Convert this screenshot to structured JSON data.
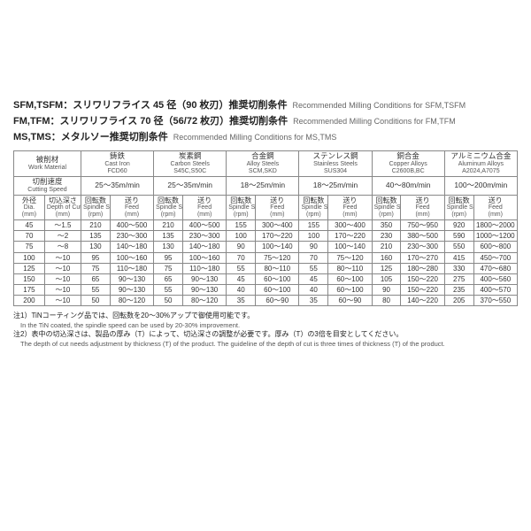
{
  "titles": [
    {
      "jp": "SFM,TSFM：スリワリフライス 45 径（90 枚刃）推奨切削条件",
      "en": "Recommended Milling Conditions for SFM,TSFM"
    },
    {
      "jp": "FM,TFM：スリワリフライス 70 径（56/72 枚刃）推奨切削条件",
      "en": "Recommended Milling Conditions for FM,TFM"
    },
    {
      "jp": "MS,TMS：メタルソー推奨切削条件",
      "en": "Recommended Milling Conditions for MS,TMS"
    }
  ],
  "header": {
    "work_jp": "被削材",
    "work_en": "Work Material",
    "cut_jp": "切削速度",
    "cut_en": "Cutting Speed",
    "dia_jp": "外径",
    "dia_en": "Dia.",
    "dia_unit": "(mm)",
    "depth_jp": "切込深さ",
    "depth_en": "Depth of Cut",
    "depth_unit": "(mm)",
    "rpm_jp": "回転数",
    "rpm_en": "Spindle Speed",
    "rpm_unit": "(rpm)",
    "feed_jp": "送り",
    "feed_en": "Feed",
    "feed_unit": "(mm)"
  },
  "materials": [
    {
      "jp": "鋳鉄",
      "en": "Cast Iron",
      "grade": "FCD60",
      "speed": "25～35m/min"
    },
    {
      "jp": "炭素鋼",
      "en": "Carbon Steels",
      "grade": "S45C,S50C",
      "speed": "25～35m/min"
    },
    {
      "jp": "合金鋼",
      "en": "Alloy Steels",
      "grade": "SCM,SKD",
      "speed": "18～25m/min"
    },
    {
      "jp": "ステンレス鋼",
      "en": "Stainless Steels",
      "grade": "SUS304",
      "speed": "18～25m/min"
    },
    {
      "jp": "銅合金",
      "en": "Copper Alloys",
      "grade": "C2600B,BC",
      "speed": "40～80m/min"
    },
    {
      "jp": "アルミニウム合金",
      "en": "Aluminum Alloys",
      "grade": "A2024,A7075",
      "speed": "100～200m/min"
    }
  ],
  "rows": [
    {
      "dia": "45",
      "depth": "～1.5",
      "cells": [
        [
          "210",
          "400～500"
        ],
        [
          "210",
          "400～500"
        ],
        [
          "155",
          "300～400"
        ],
        [
          "155",
          "300～400"
        ],
        [
          "350",
          "750～950"
        ],
        [
          "920",
          "1800～2000"
        ]
      ]
    },
    {
      "dia": "70",
      "depth": "～2",
      "cells": [
        [
          "135",
          "230～300"
        ],
        [
          "135",
          "230～300"
        ],
        [
          "100",
          "170～220"
        ],
        [
          "100",
          "170～220"
        ],
        [
          "230",
          "380～500"
        ],
        [
          "590",
          "1000～1200"
        ]
      ]
    },
    {
      "dia": "75",
      "depth": "～8",
      "cells": [
        [
          "130",
          "140～180"
        ],
        [
          "130",
          "140～180"
        ],
        [
          "90",
          "100～140"
        ],
        [
          "90",
          "100～140"
        ],
        [
          "210",
          "230～300"
        ],
        [
          "550",
          "600～800"
        ]
      ]
    },
    {
      "dia": "100",
      "depth": "～10",
      "cells": [
        [
          "95",
          "100～160"
        ],
        [
          "95",
          "100～160"
        ],
        [
          "70",
          "75～120"
        ],
        [
          "70",
          "75～120"
        ],
        [
          "160",
          "170～270"
        ],
        [
          "415",
          "450～700"
        ]
      ]
    },
    {
      "dia": "125",
      "depth": "～10",
      "cells": [
        [
          "75",
          "110～180"
        ],
        [
          "75",
          "110～180"
        ],
        [
          "55",
          "80～110"
        ],
        [
          "55",
          "80～110"
        ],
        [
          "125",
          "180～280"
        ],
        [
          "330",
          "470～680"
        ]
      ]
    },
    {
      "dia": "150",
      "depth": "～10",
      "cells": [
        [
          "65",
          "90～130"
        ],
        [
          "65",
          "90～130"
        ],
        [
          "45",
          "60～100"
        ],
        [
          "45",
          "60～100"
        ],
        [
          "105",
          "150～220"
        ],
        [
          "275",
          "400～560"
        ]
      ]
    },
    {
      "dia": "175",
      "depth": "～10",
      "cells": [
        [
          "55",
          "90～130"
        ],
        [
          "55",
          "90～130"
        ],
        [
          "40",
          "60～100"
        ],
        [
          "40",
          "60～100"
        ],
        [
          "90",
          "150～220"
        ],
        [
          "235",
          "400～570"
        ]
      ]
    },
    {
      "dia": "200",
      "depth": "～10",
      "cells": [
        [
          "50",
          "80～120"
        ],
        [
          "50",
          "80～120"
        ],
        [
          "35",
          "60～90"
        ],
        [
          "35",
          "60～90"
        ],
        [
          "80",
          "140～220"
        ],
        [
          "205",
          "370～550"
        ]
      ]
    }
  ],
  "notes": [
    {
      "jp": "注1）TiNコーティング品では、回転数を20～30%アップで御使用可能です。",
      "en": "In the TiN coated, the spindle speed can be used by 20-30% improvement."
    },
    {
      "jp": "注2）表中の切込深さは、製品の厚み（T）によって、切込深さの調整が必要です。厚み（T）の3倍を目安としてください。",
      "en": "The depth of cut needs adjustment by thickness (T) of the product. The guideline of the depth of cut is three times of thickness (T) of the product."
    }
  ]
}
